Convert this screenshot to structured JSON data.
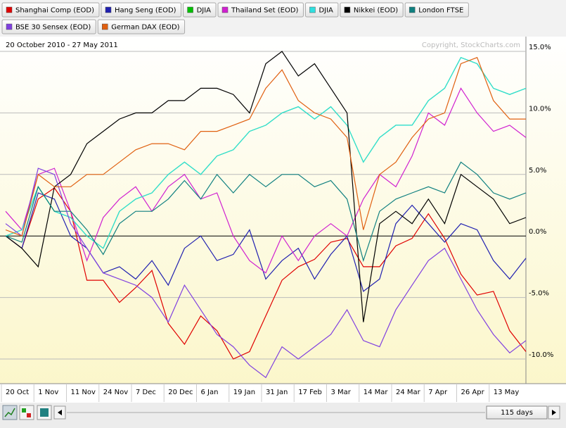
{
  "chart_data": {
    "type": "line",
    "subtitle": "20 October 2010 - 27 May 2011",
    "annotation": "Copyright, StockCharts.com",
    "period": "115 days",
    "categories": [
      "20 Oct",
      null,
      "1 Nov",
      null,
      "11 Nov",
      null,
      "24 Nov",
      null,
      "7 Dec",
      null,
      "20 Dec",
      null,
      "6 Jan",
      null,
      "19 Jan",
      null,
      "31 Jan",
      null,
      "17 Feb",
      null,
      "3 Mar",
      null,
      "14 Mar",
      null,
      "24 Mar",
      null,
      "7 Apr",
      null,
      "26 Apr",
      null,
      "13 May",
      null,
      null
    ],
    "ylim": [
      -12,
      16.2
    ],
    "yticks": [
      {
        "value": -10,
        "label": "-10.0%"
      },
      {
        "value": -5,
        "label": "-5.0%"
      },
      {
        "value": 0,
        "label": "0.0%"
      },
      {
        "value": 5,
        "label": "5.0%"
      },
      {
        "value": 10,
        "label": "10.0%"
      },
      {
        "value": 15,
        "label": "15.0%"
      }
    ],
    "grid": true,
    "legend": "top",
    "series": [
      {
        "name": "Shanghai Comp (EOD)",
        "color": "#e00000",
        "values": [
          0,
          -1,
          3,
          3.9,
          2,
          -3.6,
          -3.6,
          -5.4,
          -4.2,
          -2.8,
          -7.1,
          -8.8,
          -6.5,
          -7.7,
          -10,
          -9.4,
          -6.5,
          -3.6,
          -2.5,
          -1.9,
          -0.5,
          -0.2,
          -2.5,
          -2.5,
          -0.8,
          -0.2,
          1.8,
          -0.2,
          -3.1,
          -4.8,
          -4.5,
          -7.7,
          -9.4
        ]
      },
      {
        "name": "Hang Seng (EOD)",
        "color": "#2020b0",
        "values": [
          0,
          -1,
          3.5,
          3,
          0,
          -1,
          -3,
          -2.5,
          -3.5,
          -2,
          -4,
          -1,
          0,
          -2,
          -1.5,
          0.5,
          -3.5,
          -2,
          -1,
          -3.5,
          -1.5,
          0,
          -4.5,
          -3.5,
          1,
          2.5,
          1,
          -0.5,
          1,
          0.5,
          -2,
          -3.5,
          -1.8
        ]
      },
      {
        "name": "DJIA",
        "color": "#00c000",
        "values": [
          0,
          0.5,
          4,
          2,
          1.5,
          0,
          -1,
          2,
          3,
          3.5,
          5,
          6,
          5,
          6.5,
          7,
          8.5,
          9,
          10,
          10.5,
          9.5,
          10.5,
          9,
          6,
          8,
          9,
          9,
          11,
          12,
          14.5,
          14,
          12,
          11.5,
          12
        ]
      },
      {
        "name": "Thailand Set (EOD)",
        "color": "#d020d0",
        "values": [
          2,
          0.5,
          5,
          5.5,
          2,
          -2,
          1.5,
          3,
          4,
          2,
          4,
          5,
          3,
          3.5,
          0,
          -2,
          -3,
          0,
          -2,
          0,
          1,
          0,
          3,
          5,
          4,
          6.5,
          10,
          9,
          12,
          10,
          8.5,
          9,
          8
        ]
      },
      {
        "name": "DJIA",
        "color": "#30e0e0",
        "values": [
          0,
          0.5,
          4,
          2,
          1.5,
          0,
          -1,
          2,
          3,
          3.5,
          5,
          6,
          5,
          6.5,
          7,
          8.5,
          9,
          10,
          10.5,
          9.5,
          10.5,
          9,
          6,
          8,
          9,
          9,
          11,
          12,
          14.5,
          14,
          12,
          11.5,
          12
        ]
      },
      {
        "name": "Nikkei (EOD)",
        "color": "#000000",
        "values": [
          0,
          -1,
          -2.5,
          4,
          5,
          7.5,
          8.5,
          9.5,
          10,
          10,
          11,
          11,
          12,
          12,
          11.5,
          10,
          14,
          15,
          13,
          14,
          12,
          10,
          -7,
          1,
          2,
          1,
          3,
          1,
          5,
          4,
          3,
          1,
          1.5
        ]
      },
      {
        "name": "London FTSE",
        "color": "#108080",
        "values": [
          0,
          -0.5,
          4,
          2,
          2,
          0.5,
          -1.5,
          1,
          2,
          2,
          3,
          4.5,
          3,
          5,
          3.5,
          5,
          4,
          5,
          5,
          4,
          4.5,
          3,
          -2,
          2,
          3,
          3.5,
          4,
          3.5,
          6,
          5,
          3.5,
          3,
          3.5
        ]
      },
      {
        "name": "BSE 30 Sensex (EOD)",
        "color": "#8040e0",
        "values": [
          1,
          0,
          5.5,
          5,
          1,
          -1,
          -3,
          -3.5,
          -4,
          -5,
          -7,
          -4,
          -6,
          -8,
          -9,
          -10.5,
          -11.5,
          -9,
          -10,
          -9,
          -8,
          -6,
          -8.5,
          -9,
          -6,
          -4,
          -2,
          -1,
          -3.5,
          -6,
          -8,
          -9.5,
          -8.5
        ]
      },
      {
        "name": "German DAX (EOD)",
        "color": "#e06010",
        "values": [
          0.5,
          0,
          5,
          4,
          4,
          5,
          5,
          6,
          7,
          7.5,
          7.5,
          7,
          8.5,
          8.5,
          9,
          9.5,
          12,
          13.5,
          11,
          10,
          9.5,
          8,
          0.5,
          5,
          6,
          8,
          9.5,
          10,
          14,
          14.5,
          11,
          9.5,
          9.5
        ]
      }
    ]
  }
}
